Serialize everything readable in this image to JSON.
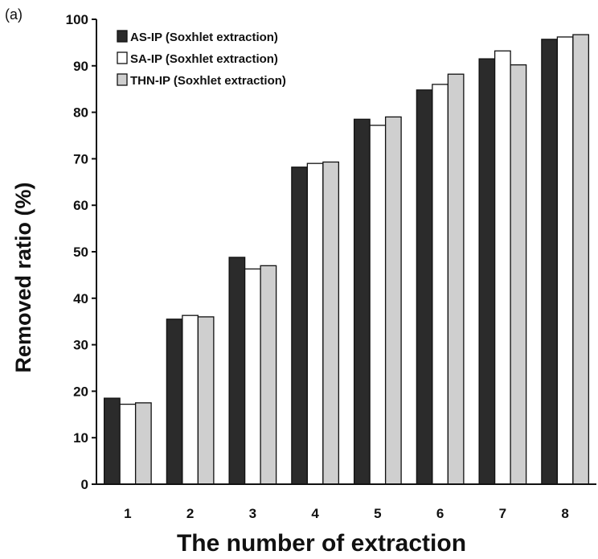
{
  "panel_label": "(a)",
  "chart_data": {
    "type": "bar",
    "title": "",
    "xlabel": "The number of extraction",
    "ylabel": "Removed ratio (%)",
    "ylim": [
      0,
      100
    ],
    "yticks": [
      0,
      10,
      20,
      30,
      40,
      50,
      60,
      70,
      80,
      90,
      100
    ],
    "categories": [
      "1",
      "2",
      "3",
      "4",
      "5",
      "6",
      "7",
      "8"
    ],
    "legend_position": "top-left",
    "grid": false,
    "series": [
      {
        "name": "AS-IP (Soxhlet extraction)",
        "color": "#2b2b2b",
        "values": [
          18.5,
          35.5,
          48.8,
          68.2,
          78.5,
          84.8,
          91.5,
          95.7
        ]
      },
      {
        "name": "SA-IP (Soxhlet extraction)",
        "color": "#ffffff",
        "values": [
          17.2,
          36.3,
          46.3,
          69.0,
          77.2,
          86.0,
          93.2,
          96.2
        ]
      },
      {
        "name": "THN-IP (Soxhlet extraction)",
        "color": "#cfcfcf",
        "values": [
          17.5,
          36.0,
          47.0,
          69.3,
          79.0,
          88.2,
          90.2,
          96.7
        ]
      }
    ]
  }
}
